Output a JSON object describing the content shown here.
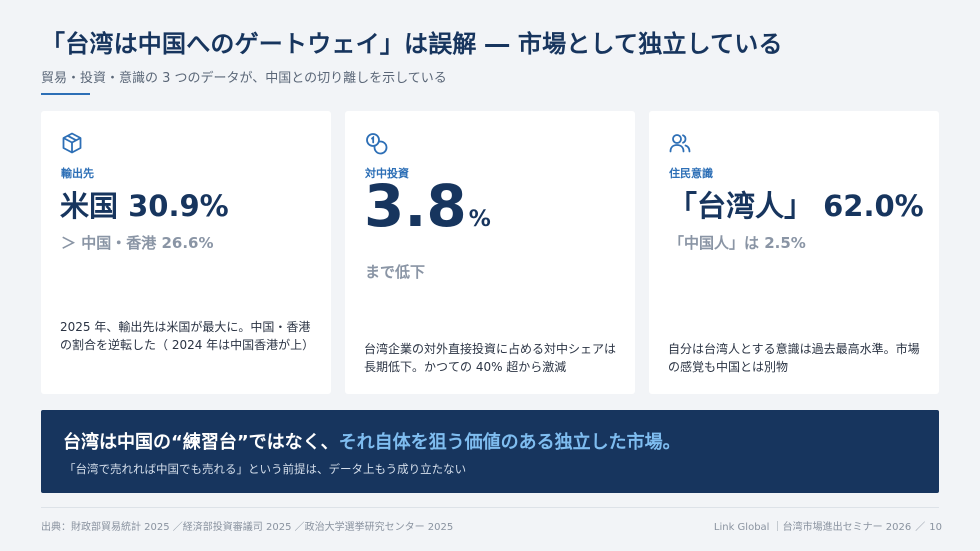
{
  "header": {
    "title": "「台湾は中国へのゲートウェイ」は誤解 ― 市場として独立している",
    "subtitle": "貿易・投資・意識の 3 つのデータが、中国との切り離しを示している"
  },
  "cards": [
    {
      "icon": "box-icon",
      "label": "輸出先",
      "value": "米国 30.9%",
      "sub_value": "＞ 中国・香港 26.6%",
      "description": "2025 年、輸出先は米国が最大に。中国・香港の割合を逆転した（ 2024 年は中国香港が上）"
    },
    {
      "icon": "coins-icon",
      "label": "対中投資",
      "value_number": "3.8",
      "value_unit": "%",
      "sub_value": "まで低下",
      "description": "台湾企業の対外直接投資に占める対中シェアは長期低下。かつての 40% 超から激減"
    },
    {
      "icon": "users-icon",
      "label": "住民意識",
      "value": "「台湾人」 62.0%",
      "sub_value": "「中国人」は 2.5%",
      "description": "自分は台湾人とする意識は過去最高水準。市場の感覚も中国とは別物"
    }
  ],
  "banner": {
    "main_prefix": "台湾は中国の“練習台”ではなく、",
    "main_highlight": "それ自体を狙う価値のある独立した市場。",
    "sub": "「台湾で売れれば中国でも売れる」という前提は、データ上もう成り立たない"
  },
  "footer": {
    "source": "出典：財政部貿易統計 2025 ／経済部投資審議司 2025 ／政治大学選挙研究センター 2025",
    "brand": "Link Global ｜台湾市場進出セミナー 2026",
    "page_sep": "／",
    "page_number": "10"
  },
  "colors": {
    "accent": "#2d6fb6",
    "navy": "#17355e",
    "highlight": "#7fbdf0"
  }
}
